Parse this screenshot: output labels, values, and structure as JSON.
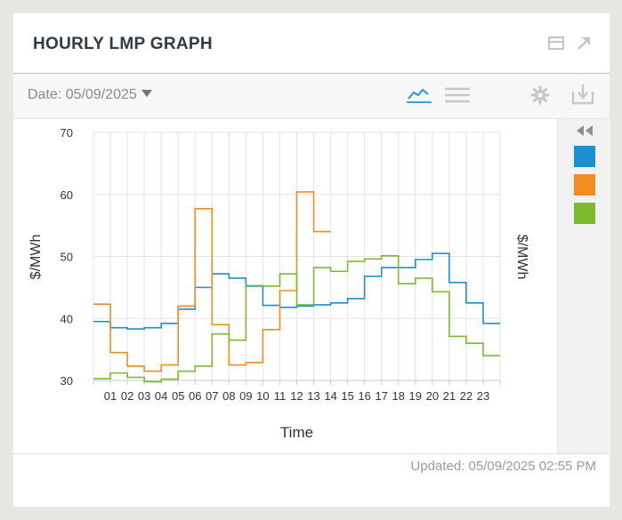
{
  "header": {
    "title": "HOURLY LMP GRAPH"
  },
  "toolbar": {
    "date_label": "Date: 05/09/2025"
  },
  "footer": {
    "updated": "Updated: 05/09/2025 02:55 PM"
  },
  "icons": {
    "window": "window-icon",
    "popout": "popout-arrow-icon",
    "chart_view": "line-chart-icon",
    "table_view": "list-icon",
    "settings": "gear-icon",
    "download": "download-icon",
    "collapse": "double-chevron-left-icon"
  },
  "colors": {
    "blue": "#1a8fd1",
    "orange": "#f58a1f",
    "green": "#7dbb2c",
    "accent": "#35a2db"
  },
  "chart_data": {
    "type": "line",
    "step": true,
    "xlabel": "Time",
    "ylabel": "$/MWh",
    "ylabel_right": "$/MWh",
    "ylim": [
      30,
      70
    ],
    "yticks": [
      30,
      40,
      50,
      60,
      70
    ],
    "x_ticks": [
      "01",
      "02",
      "03",
      "04",
      "05",
      "06",
      "07",
      "08",
      "09",
      "10",
      "11",
      "12",
      "13",
      "14",
      "15",
      "16",
      "17",
      "18",
      "19",
      "20",
      "21",
      "22",
      "23"
    ],
    "grid": true,
    "series": [
      {
        "color": "#1a8fd1",
        "values": [
          39.5,
          38.5,
          38.3,
          38.5,
          39.2,
          41.5,
          45.0,
          47.2,
          46.5,
          45.2,
          42.1,
          41.8,
          42.0,
          42.2,
          42.5,
          43.2,
          46.8,
          48.2,
          48.2,
          49.5,
          50.5,
          45.8,
          42.5,
          39.2
        ]
      },
      {
        "color": "#f58a1f",
        "values": [
          42.3,
          34.5,
          32.3,
          31.5,
          32.5,
          42.0,
          57.7,
          39.0,
          32.5,
          32.9,
          38.2,
          44.5,
          60.4,
          54.0
        ]
      },
      {
        "color": "#7dbb2c",
        "values": [
          30.3,
          31.2,
          30.5,
          29.8,
          30.2,
          31.5,
          32.3,
          37.5,
          36.5,
          45.3,
          45.2,
          47.2,
          42.2,
          48.2,
          47.6,
          49.2,
          49.6,
          50.1,
          45.6,
          46.5,
          44.3,
          37.1,
          36.0,
          34.0
        ]
      }
    ]
  }
}
